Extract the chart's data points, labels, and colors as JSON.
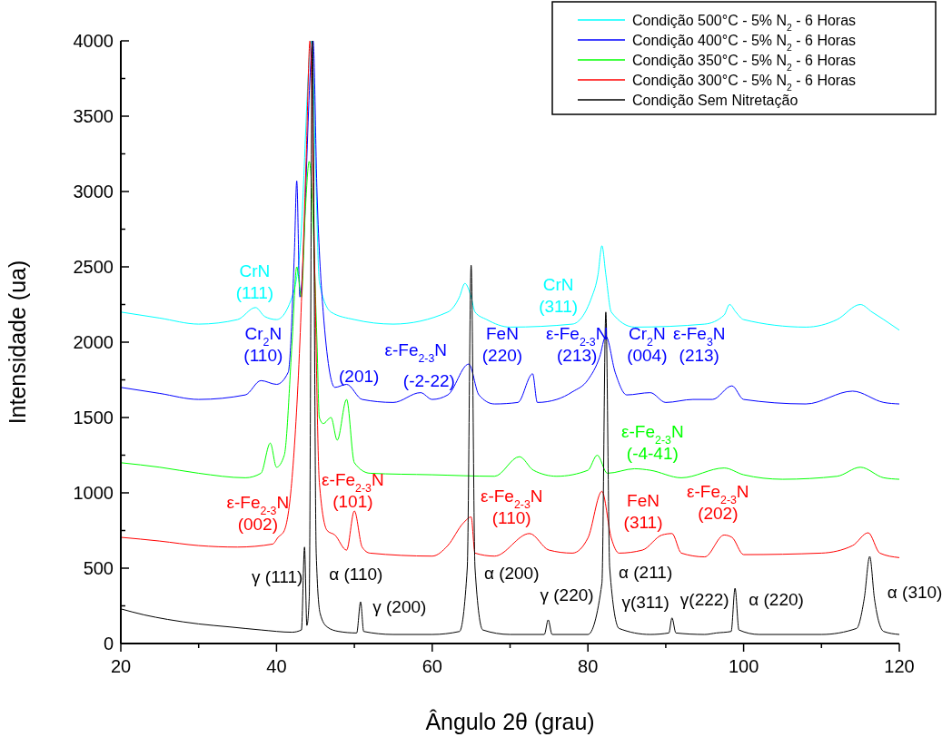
{
  "chart_data": {
    "type": "line",
    "xlabel": "Ângulo 2θ (grau)",
    "ylabel": "Intensidade (ua)",
    "xlim": [
      20,
      120
    ],
    "xticks": [
      20,
      {
        "value": 30,
        "label": null
      },
      40,
      {
        "value": 50,
        "label": null
      },
      60,
      {
        "value": 70,
        "label": null
      },
      80,
      {
        "value": 90,
        "label": null
      },
      100,
      {
        "value": 110,
        "label": null
      },
      120
    ],
    "ylim": [
      0,
      4000
    ],
    "yticks": [
      0,
      {
        "value": 250,
        "label": null
      },
      500,
      {
        "value": 750,
        "label": null
      },
      1000,
      {
        "value": 1250,
        "label": null
      },
      1500,
      {
        "value": 1750,
        "label": null
      },
      2000,
      {
        "value": 2250,
        "label": null
      },
      2500,
      {
        "value": 2750,
        "label": null
      },
      3000,
      {
        "value": 3250,
        "label": null
      },
      3500,
      {
        "value": 3750,
        "label": null
      },
      4000
    ],
    "grid": false,
    "legend": "top right",
    "marker": "none",
    "line_style": "solid",
    "series": [
      {
        "name": "Condição 500°C - 5% N$_{2}$ - 6 Horas",
        "color": "#00ffff",
        "x": [
          20,
          25,
          30,
          35,
          37.3,
          38.5,
          40,
          42,
          43,
          44.5,
          45,
          45.5,
          47,
          50,
          55,
          62,
          63.5,
          64.2,
          65,
          65.5,
          67,
          70,
          78,
          80.5,
          81.3,
          81.8,
          82.3,
          83,
          86,
          95,
          97.5,
          98.2,
          99,
          100,
          108,
          112,
          115,
          116.5,
          118,
          120
        ],
        "values": [
          2200,
          2160,
          2120,
          2150,
          2230,
          2170,
          2150,
          2300,
          2600,
          4000,
          3200,
          2400,
          2200,
          2150,
          2120,
          2200,
          2300,
          2390,
          2300,
          2200,
          2150,
          2100,
          2120,
          2300,
          2450,
          2640,
          2450,
          2200,
          2100,
          2120,
          2180,
          2250,
          2200,
          2150,
          2100,
          2150,
          2250,
          2200,
          2150,
          2080
        ]
      },
      {
        "name": "Condição 400°C - 5% N$_{2}$ - 6 Horas",
        "color": "#0000ff",
        "x": [
          20,
          25,
          30,
          36,
          38,
          40,
          41.5,
          42.3,
          42.6,
          43.0,
          44.7,
          45.2,
          46,
          47.5,
          49,
          51,
          55,
          58.5,
          60,
          62,
          64.7,
          66,
          68,
          71,
          72.9,
          73.5,
          76,
          78,
          80,
          81.5,
          82.3,
          83.5,
          85,
          88,
          90,
          93.5,
          96,
          98.5,
          100,
          108,
          114,
          118,
          120
        ],
        "values": [
          1700,
          1660,
          1620,
          1650,
          1745,
          1720,
          1800,
          2600,
          3070,
          2300,
          4000,
          3000,
          2200,
          1700,
          1720,
          1620,
          1600,
          1665,
          1620,
          1650,
          1855,
          1650,
          1590,
          1600,
          1790,
          1600,
          1620,
          1670,
          1750,
          1900,
          2040,
          1800,
          1650,
          1665,
          1600,
          1620,
          1620,
          1710,
          1620,
          1590,
          1675,
          1600,
          1590
        ]
      },
      {
        "name": "Condição 350°C - 5% N$_{2}$ - 6 Horas",
        "color": "#00ff00",
        "x": [
          20,
          25,
          30,
          36,
          38,
          39.2,
          40,
          41,
          42,
          42.6,
          43.2,
          43.7,
          44.2,
          45.2,
          45.5,
          46,
          47,
          47.8,
          49,
          50,
          52,
          60,
          68,
          71.2,
          73,
          76,
          80,
          81.2,
          82.5,
          86,
          88,
          92,
          97.5,
          100,
          105,
          112,
          115,
          118,
          120
        ],
        "values": [
          1200,
          1170,
          1130,
          1100,
          1130,
          1330,
          1170,
          1250,
          2000,
          2500,
          2300,
          2870,
          3200,
          2000,
          1500,
          1460,
          1500,
          1350,
          1620,
          1200,
          1130,
          1120,
          1110,
          1240,
          1150,
          1110,
          1150,
          1250,
          1130,
          1160,
          1150,
          1100,
          1165,
          1120,
          1090,
          1110,
          1170,
          1100,
          1090
        ]
      },
      {
        "name": "Condição 300°C - 5% N$_{2}$ - 6 Horas",
        "color": "#ff0000",
        "x": [
          20,
          25,
          30,
          35,
          39.5,
          40.2,
          41,
          42,
          43,
          43.8,
          44.3,
          44.9,
          45.5,
          46.5,
          47.5,
          49,
          50,
          51,
          52,
          60,
          62,
          64,
          65,
          65.5,
          68,
          72.5,
          75,
          78,
          80,
          81.8,
          83,
          84,
          87,
          89.5,
          90.8,
          92,
          95,
          97.5,
          98.5,
          100,
          110,
          114,
          116,
          117.5,
          120
        ],
        "values": [
          705,
          680,
          650,
          640,
          660,
          705,
          750,
          1100,
          2000,
          3200,
          4000,
          2500,
          1070,
          750,
          720,
          620,
          880,
          640,
          600,
          580,
          650,
          800,
          840,
          600,
          580,
          730,
          620,
          600,
          700,
          1010,
          700,
          600,
          620,
          720,
          730,
          600,
          575,
          720,
          705,
          590,
          600,
          650,
          735,
          600,
          570
        ]
      },
      {
        "name": "Condição Sem Nitretação",
        "color": "#000000",
        "x": [
          20,
          23,
          26,
          30,
          34,
          38,
          42,
          43.2,
          43.6,
          43.9,
          44.2,
          44.6,
          45.1,
          45.6,
          46.5,
          48,
          50.3,
          50.8,
          51.2,
          55,
          60,
          63.5,
          64.5,
          65.0,
          65.5,
          66.5,
          70,
          74.4,
          74.9,
          75.4,
          80,
          81.8,
          82.3,
          82.8,
          84,
          88,
          90.4,
          90.8,
          91.3,
          95,
          96.5,
          98.4,
          98.9,
          99.4,
          102,
          110,
          114.5,
          115.5,
          116.2,
          116.8,
          118,
          120
        ],
        "values": [
          230,
          190,
          160,
          130,
          110,
          90,
          75,
          90,
          640,
          120,
          300,
          4000,
          600,
          200,
          110,
          80,
          70,
          277,
          80,
          60,
          60,
          80,
          500,
          2510,
          500,
          90,
          60,
          60,
          157,
          60,
          60,
          400,
          2200,
          500,
          100,
          60,
          70,
          170,
          70,
          60,
          70,
          80,
          367,
          90,
          60,
          60,
          100,
          300,
          578,
          300,
          80,
          60
        ]
      }
    ],
    "annotations": [
      "γ (111)",
      "α (110)",
      "γ (200)",
      "α (200)",
      "γ (220)",
      "α (211)",
      "γ(311)",
      "γ(222)",
      "α (220)",
      "α (310)",
      "ε-Fe$_{2-3}$N\n(002)",
      "ε-Fe$_{2-3}$N\n(101)",
      "ε-Fe$_{2-3}$N\n(110)",
      "FeN\n(311)",
      "ε-Fe$_{2-3}$N\n(202)",
      "ε-Fe$_{2-3}$N\n(-4-41)",
      "Cr$_{2}$N\n(110)",
      "ε-Fe$_{2-3}$N",
      "(201)",
      "(-2-22)",
      "FeN\n(220)",
      "ε-Fe$_{2-3}$N\n(213)",
      "Cr$_{2}$N\n(004)",
      "ε-Fe$_{3}$N\n(213)",
      "CrN\n(111)",
      "CrN\n(311)"
    ]
  }
}
